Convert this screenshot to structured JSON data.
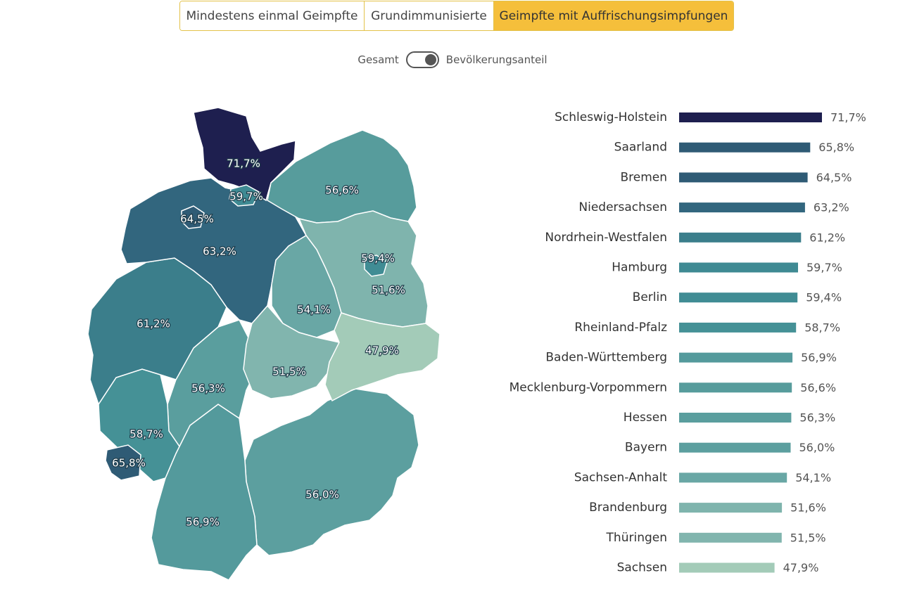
{
  "tabs": [
    {
      "label": "Mindestens einmal Geimpfte",
      "active": false
    },
    {
      "label": "Grundimmunisierte",
      "active": false
    },
    {
      "label": "Geimpfte mit Auffrischungsimpfungen",
      "active": true
    }
  ],
  "toggle": {
    "left_label": "Gesamt",
    "right_label": "Bevölkerungsanteil",
    "selected": "Bevölkerungsanteil"
  },
  "colors": {
    "tab_active": "#f5bf3b",
    "tab_border": "#e3c24a",
    "scale_dark": "#1e1f4f",
    "scale_light": "#a3cbb8"
  },
  "chart_data": {
    "type": "bar",
    "orientation": "horizontal",
    "categories": [
      "Schleswig-Holstein",
      "Saarland",
      "Bremen",
      "Niedersachsen",
      "Nordrhein-Westfalen",
      "Hamburg",
      "Berlin",
      "Rheinland-Pfalz",
      "Baden-Württemberg",
      "Mecklenburg-Vorpommern",
      "Hessen",
      "Bayern",
      "Sachsen-Anhalt",
      "Brandenburg",
      "Thüringen",
      "Sachsen"
    ],
    "values": [
      71.7,
      65.8,
      64.5,
      63.2,
      61.2,
      59.7,
      59.4,
      58.7,
      56.9,
      56.6,
      56.3,
      56.0,
      54.1,
      51.6,
      51.5,
      47.9
    ],
    "labels": [
      "71,7%",
      "65,8%",
      "64,5%",
      "63,2%",
      "61,2%",
      "59,7%",
      "59,4%",
      "58,7%",
      "56,9%",
      "56,6%",
      "56,3%",
      "56,0%",
      "54,1%",
      "51,6%",
      "51,5%",
      "47,9%"
    ],
    "colors": [
      "#1e1f4f",
      "#2f5b75",
      "#2f5b75",
      "#32667e",
      "#3b7e8b",
      "#3f8a93",
      "#408c94",
      "#459196",
      "#549a9c",
      "#579c9c",
      "#5a9e9e",
      "#5c9f9f",
      "#69a7a5",
      "#7fb4ad",
      "#81b5ae",
      "#a3cbb8"
    ],
    "unit": "%",
    "xlim": [
      0,
      71.7
    ]
  }
}
